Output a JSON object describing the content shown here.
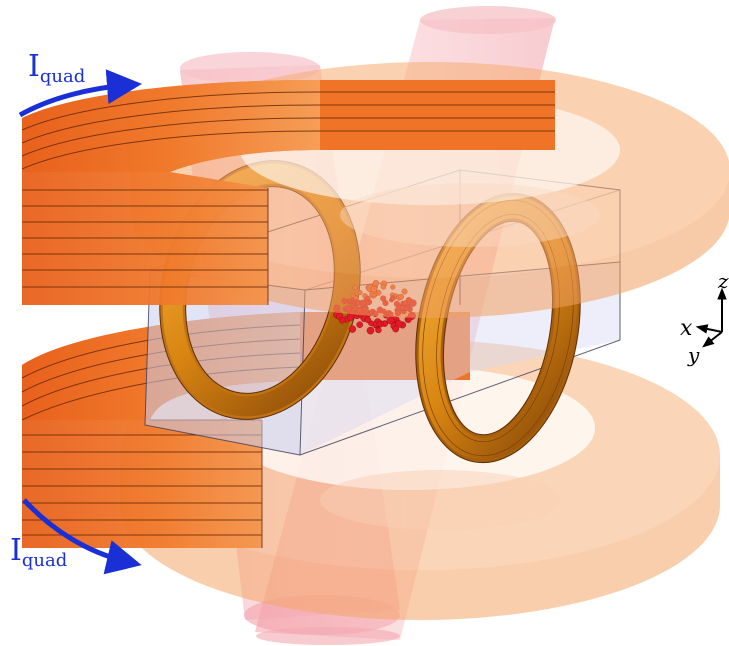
{
  "labels": {
    "top_current": "I",
    "top_current_sub": "quad",
    "bottom_current": "I",
    "bottom_current_sub": "quad"
  },
  "axes": {
    "x": "x",
    "y": "y",
    "z": "z"
  },
  "colors": {
    "coil_orange": "#f2782a",
    "coil_translucent": "#f6ab6e",
    "ring_gold": "#e08a18",
    "beam_pink": "#f4a0a8",
    "cell_blue": "#c9cdf0",
    "atoms_red": "#e21a26",
    "arrow_blue": "#1a2fd6"
  }
}
